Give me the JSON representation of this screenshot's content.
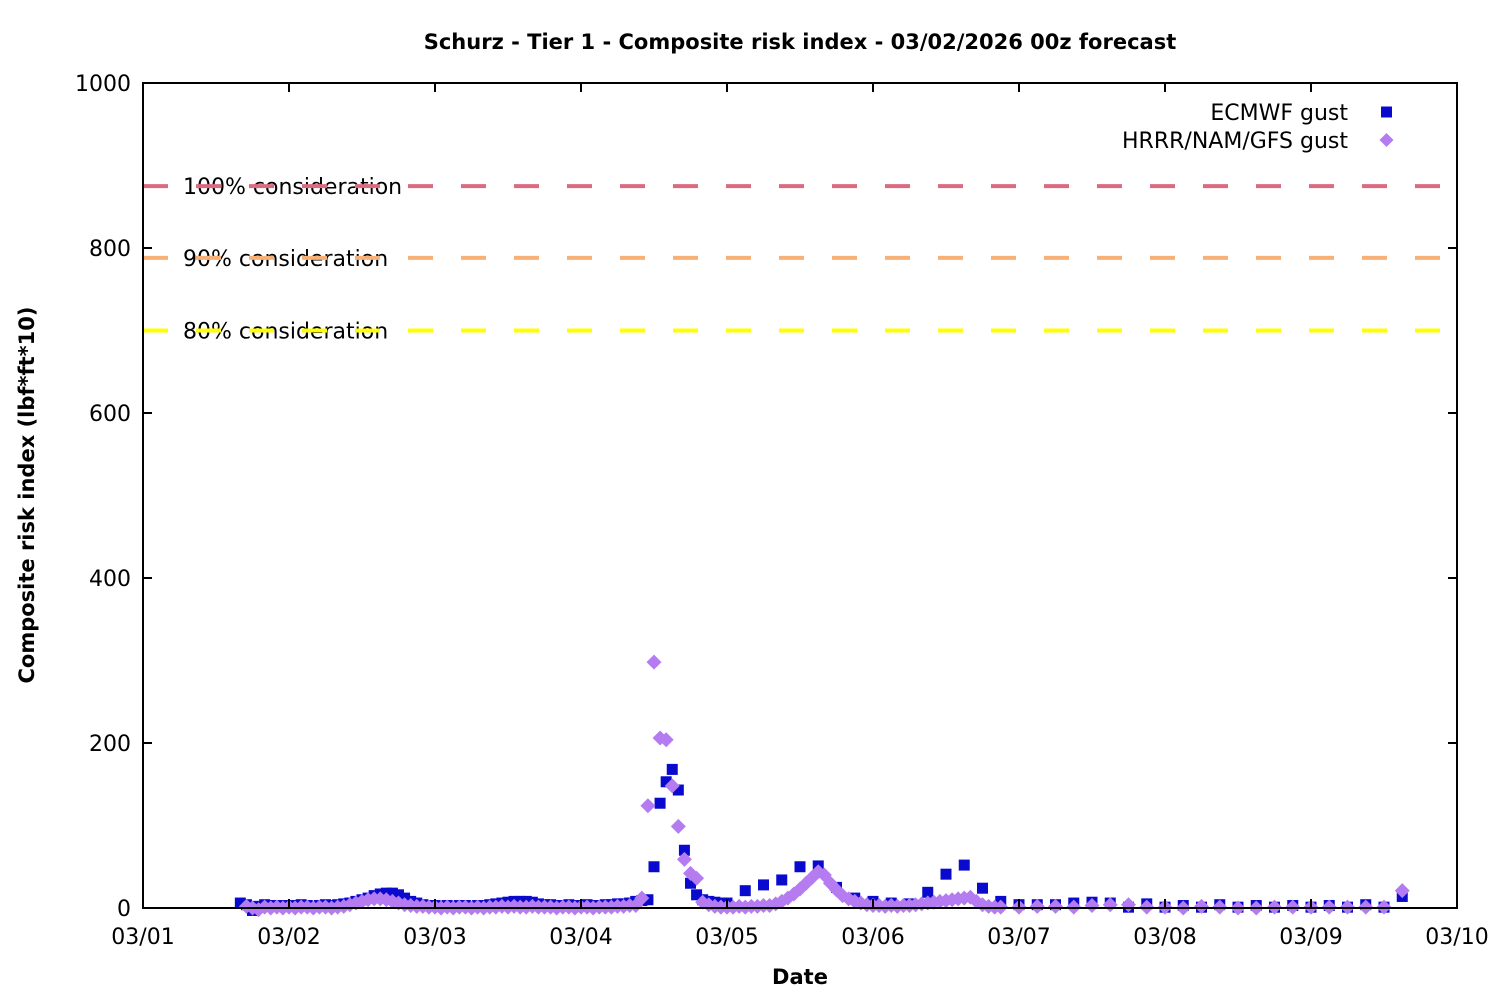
{
  "chart_data": {
    "type": "scatter",
    "title": "Schurz - Tier 1 - Composite risk index - 03/02/2026 00z forecast",
    "xlabel": "Date",
    "ylabel": "Composite risk index (lbf*ft*10)",
    "x_tick_labels": [
      "03/01",
      "03/02",
      "03/03",
      "03/04",
      "03/05",
      "03/06",
      "03/07",
      "03/08",
      "03/09",
      "03/10"
    ],
    "y_tick_values": [
      0,
      200,
      400,
      600,
      800,
      1000
    ],
    "ylim": [
      0,
      1000
    ],
    "x_unit": "hours since 03/01 00:00",
    "x_range_hours": [
      0,
      216
    ],
    "grid": false,
    "legend_position": "top-right-inside",
    "axis_color": "#000000",
    "thresholds": [
      {
        "label": "100% consideration",
        "value": 875,
        "color": "#db6a80"
      },
      {
        "label": "90% consideration",
        "value": 788,
        "color": "#f7b177"
      },
      {
        "label": "80% consideration",
        "value": 700,
        "color": "#ffff00"
      }
    ],
    "series": [
      {
        "name": "ECMWF gust",
        "marker": "square",
        "color": "#0a0ace",
        "points": [
          [
            16,
            6
          ],
          [
            17,
            4
          ],
          [
            18,
            -3
          ],
          [
            19,
            2
          ],
          [
            20,
            4
          ],
          [
            21,
            3
          ],
          [
            22,
            2
          ],
          [
            23,
            3
          ],
          [
            24,
            2
          ],
          [
            25,
            3
          ],
          [
            26,
            4
          ],
          [
            27,
            3
          ],
          [
            28,
            2
          ],
          [
            29,
            3
          ],
          [
            30,
            4
          ],
          [
            31,
            3
          ],
          [
            32,
            4
          ],
          [
            33,
            5
          ],
          [
            34,
            6
          ],
          [
            35,
            8
          ],
          [
            36,
            10
          ],
          [
            37,
            12
          ],
          [
            38,
            15
          ],
          [
            39,
            17
          ],
          [
            40,
            18
          ],
          [
            41,
            18
          ],
          [
            42,
            16
          ],
          [
            43,
            12
          ],
          [
            44,
            8
          ],
          [
            45,
            6
          ],
          [
            46,
            4
          ],
          [
            47,
            3
          ],
          [
            48,
            3
          ],
          [
            49,
            2
          ],
          [
            50,
            3
          ],
          [
            51,
            2
          ],
          [
            52,
            3
          ],
          [
            53,
            3
          ],
          [
            54,
            2
          ],
          [
            55,
            3
          ],
          [
            56,
            3
          ],
          [
            57,
            4
          ],
          [
            58,
            5
          ],
          [
            59,
            6
          ],
          [
            60,
            7
          ],
          [
            61,
            8
          ],
          [
            62,
            8
          ],
          [
            63,
            8
          ],
          [
            64,
            7
          ],
          [
            65,
            5
          ],
          [
            66,
            4
          ],
          [
            67,
            4
          ],
          [
            68,
            3
          ],
          [
            69,
            3
          ],
          [
            70,
            4
          ],
          [
            71,
            3
          ],
          [
            72,
            3
          ],
          [
            73,
            4
          ],
          [
            74,
            3
          ],
          [
            75,
            3
          ],
          [
            76,
            4
          ],
          [
            77,
            4
          ],
          [
            78,
            5
          ],
          [
            79,
            5
          ],
          [
            80,
            6
          ],
          [
            81,
            8
          ],
          [
            82,
            9
          ],
          [
            83,
            10
          ],
          [
            84,
            50
          ],
          [
            85,
            127
          ],
          [
            86,
            153
          ],
          [
            87,
            168
          ],
          [
            88,
            143
          ],
          [
            89,
            70
          ],
          [
            90,
            30
          ],
          [
            91,
            16
          ],
          [
            92,
            10
          ],
          [
            93,
            8
          ],
          [
            94,
            7
          ],
          [
            95,
            6
          ],
          [
            96,
            6
          ],
          [
            99,
            21
          ],
          [
            102,
            28
          ],
          [
            105,
            34
          ],
          [
            108,
            50
          ],
          [
            111,
            51
          ],
          [
            114,
            25
          ],
          [
            117,
            12
          ],
          [
            120,
            8
          ],
          [
            123,
            6
          ],
          [
            126,
            5
          ],
          [
            129,
            19
          ],
          [
            132,
            41
          ],
          [
            135,
            52
          ],
          [
            138,
            24
          ],
          [
            141,
            8
          ],
          [
            144,
            4
          ],
          [
            147,
            4
          ],
          [
            150,
            4
          ],
          [
            153,
            6
          ],
          [
            156,
            7
          ],
          [
            159,
            6
          ],
          [
            162,
            1
          ],
          [
            165,
            5
          ],
          [
            168,
            1
          ],
          [
            171,
            3
          ],
          [
            174,
            1
          ],
          [
            177,
            4
          ],
          [
            180,
            1
          ],
          [
            183,
            3
          ],
          [
            186,
            1
          ],
          [
            189,
            3
          ],
          [
            192,
            1
          ],
          [
            195,
            3
          ],
          [
            198,
            1
          ],
          [
            201,
            4
          ],
          [
            204,
            1
          ],
          [
            207,
            14
          ]
        ]
      },
      {
        "name": "HRRR/NAM/GFS gust",
        "marker": "diamond",
        "color": "#b57cf2",
        "points": [
          [
            17,
            2
          ],
          [
            18,
            0
          ],
          [
            19,
            -2
          ],
          [
            20,
            1
          ],
          [
            21,
            0
          ],
          [
            22,
            1
          ],
          [
            23,
            0
          ],
          [
            24,
            1
          ],
          [
            25,
            0
          ],
          [
            26,
            1
          ],
          [
            27,
            1
          ],
          [
            28,
            0
          ],
          [
            29,
            1
          ],
          [
            30,
            1
          ],
          [
            31,
            0
          ],
          [
            32,
            1
          ],
          [
            33,
            2
          ],
          [
            34,
            4
          ],
          [
            35,
            6
          ],
          [
            36,
            8
          ],
          [
            37,
            10
          ],
          [
            38,
            11
          ],
          [
            39,
            11
          ],
          [
            40,
            10
          ],
          [
            41,
            8
          ],
          [
            42,
            6
          ],
          [
            43,
            4
          ],
          [
            44,
            3
          ],
          [
            45,
            2
          ],
          [
            46,
            2
          ],
          [
            47,
            1
          ],
          [
            48,
            1
          ],
          [
            49,
            0
          ],
          [
            50,
            1
          ],
          [
            51,
            0
          ],
          [
            52,
            1
          ],
          [
            53,
            1
          ],
          [
            54,
            0
          ],
          [
            55,
            1
          ],
          [
            56,
            0
          ],
          [
            57,
            1
          ],
          [
            58,
            1
          ],
          [
            59,
            2
          ],
          [
            60,
            1
          ],
          [
            61,
            2
          ],
          [
            62,
            1
          ],
          [
            63,
            1
          ],
          [
            64,
            2
          ],
          [
            65,
            1
          ],
          [
            66,
            1
          ],
          [
            67,
            1
          ],
          [
            68,
            0
          ],
          [
            69,
            1
          ],
          [
            70,
            1
          ],
          [
            71,
            0
          ],
          [
            72,
            1
          ],
          [
            73,
            1
          ],
          [
            74,
            0
          ],
          [
            75,
            1
          ],
          [
            76,
            1
          ],
          [
            77,
            1
          ],
          [
            78,
            2
          ],
          [
            79,
            2
          ],
          [
            80,
            3
          ],
          [
            81,
            3
          ],
          [
            82,
            12
          ],
          [
            83,
            124
          ],
          [
            84,
            298
          ],
          [
            85,
            206
          ],
          [
            86,
            204
          ],
          [
            87,
            148
          ],
          [
            88,
            99
          ],
          [
            89,
            59
          ],
          [
            90,
            42
          ],
          [
            91,
            36
          ],
          [
            92,
            7
          ],
          [
            93,
            4
          ],
          [
            94,
            2
          ],
          [
            95,
            1
          ],
          [
            96,
            1
          ],
          [
            97,
            1
          ],
          [
            98,
            2
          ],
          [
            99,
            1
          ],
          [
            100,
            2
          ],
          [
            101,
            2
          ],
          [
            102,
            3
          ],
          [
            103,
            3
          ],
          [
            104,
            5
          ],
          [
            105,
            8
          ],
          [
            106,
            12
          ],
          [
            107,
            17
          ],
          [
            108,
            23
          ],
          [
            109,
            30
          ],
          [
            110,
            37
          ],
          [
            111,
            44
          ],
          [
            112,
            40
          ],
          [
            113,
            30
          ],
          [
            114,
            22
          ],
          [
            115,
            15
          ],
          [
            116,
            11
          ],
          [
            117,
            8
          ],
          [
            118,
            6
          ],
          [
            119,
            4
          ],
          [
            120,
            3
          ],
          [
            121,
            3
          ],
          [
            122,
            2
          ],
          [
            123,
            3
          ],
          [
            124,
            2
          ],
          [
            125,
            3
          ],
          [
            126,
            3
          ],
          [
            127,
            4
          ],
          [
            128,
            5
          ],
          [
            129,
            6
          ],
          [
            130,
            7
          ],
          [
            131,
            8
          ],
          [
            132,
            9
          ],
          [
            133,
            10
          ],
          [
            134,
            11
          ],
          [
            135,
            12
          ],
          [
            136,
            13
          ],
          [
            137,
            8
          ],
          [
            138,
            4
          ],
          [
            139,
            2
          ],
          [
            140,
            1
          ],
          [
            141,
            1
          ],
          [
            144,
            1
          ],
          [
            147,
            2
          ],
          [
            150,
            2
          ],
          [
            153,
            1
          ],
          [
            156,
            3
          ],
          [
            159,
            4
          ],
          [
            162,
            4
          ],
          [
            165,
            1
          ],
          [
            168,
            1
          ],
          [
            171,
            0
          ],
          [
            174,
            2
          ],
          [
            177,
            1
          ],
          [
            180,
            0
          ],
          [
            183,
            0
          ],
          [
            186,
            1
          ],
          [
            189,
            1
          ],
          [
            192,
            1
          ],
          [
            195,
            1
          ],
          [
            198,
            1
          ],
          [
            201,
            1
          ],
          [
            204,
            1
          ],
          [
            207,
            21
          ]
        ]
      }
    ]
  }
}
